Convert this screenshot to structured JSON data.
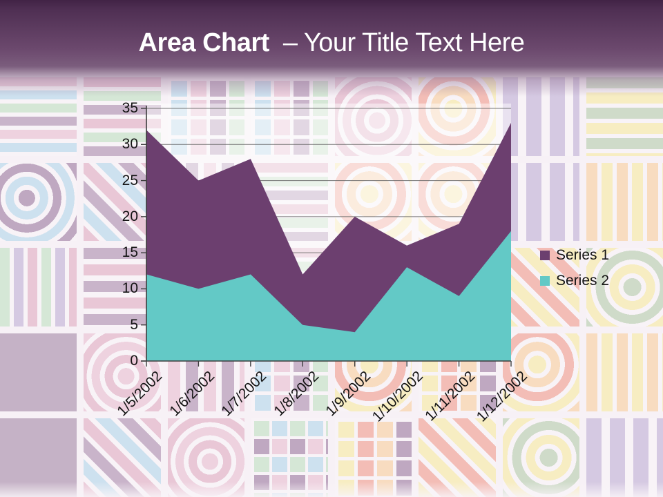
{
  "slide": {
    "title_bold": "Area Chart",
    "title_rest": "– Your Title Text Here",
    "header_color": "#5b3a5e"
  },
  "chart_data": {
    "type": "area",
    "title": "",
    "xlabel": "",
    "ylabel": "",
    "categories": [
      "1/5/2002",
      "1/6/2002",
      "1/7/2002",
      "1/8/2002",
      "1/9/2002",
      "1/10/2002",
      "1/11/2002",
      "1/12/2002"
    ],
    "series": [
      {
        "name": "Series 1",
        "color": "#6c3f6f",
        "values": [
          32,
          25,
          28,
          12,
          20,
          16,
          19,
          33
        ]
      },
      {
        "name": "Series 2",
        "color": "#63c9c6",
        "values": [
          12,
          10,
          12,
          5,
          4,
          13,
          9,
          18
        ]
      }
    ],
    "stacked": false,
    "ylim": [
      0,
      35
    ],
    "ytick_step": 5,
    "yticks": [
      "0",
      "5",
      "10",
      "15",
      "20",
      "25",
      "30",
      "35"
    ],
    "grid": true,
    "gridline_color": "#5f5f5f",
    "axis_color": "#3c3c3c",
    "legend_position": "right"
  }
}
